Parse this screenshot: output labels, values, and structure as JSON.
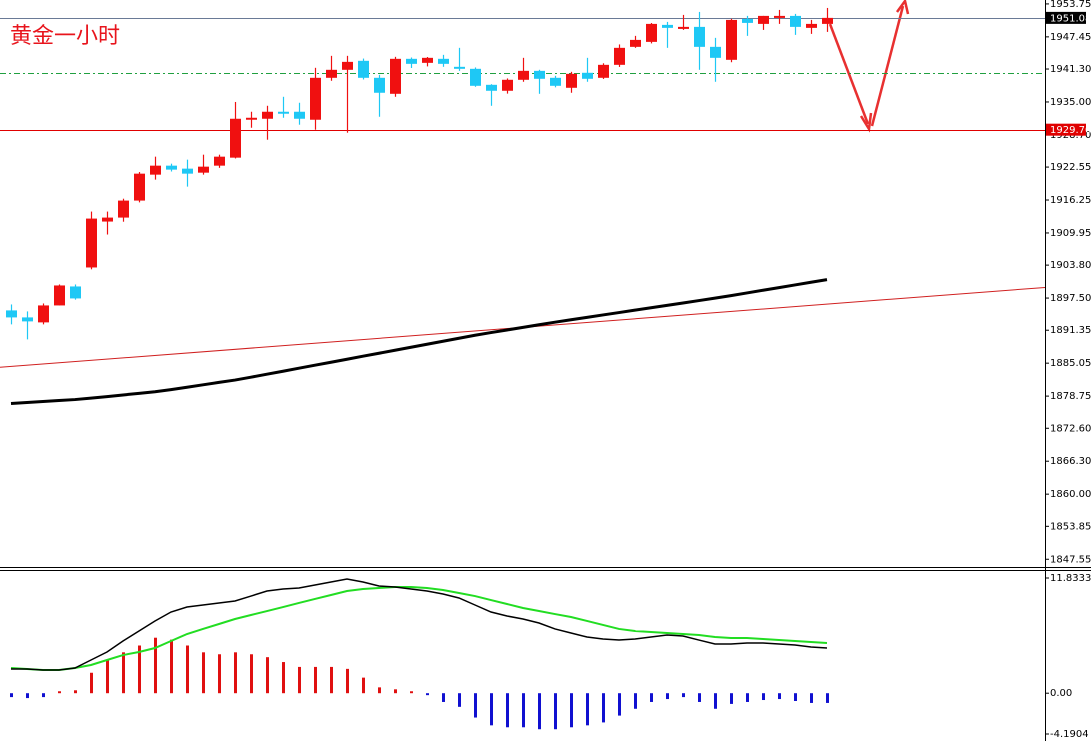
{
  "chart_data": [
    {
      "type": "candlestick",
      "title": "黄金一小时",
      "open": [
        1895.14,
        1893.8,
        1892.85,
        1896.09,
        1899.72,
        1903.35,
        1912.13,
        1912.89,
        1916.14,
        1921.1,
        1922.82,
        1922.25,
        1921.48,
        1922.82,
        1924.35,
        1931.6,
        1931.79,
        1933.13,
        1933.13,
        1931.6,
        1939.62,
        1941.15,
        1942.87,
        1939.62,
        1936.56,
        1943.25,
        1942.48,
        1943.25,
        1941.72,
        1941.34,
        1938.28,
        1937.14,
        1939.24,
        1940.95,
        1939.62,
        1937.71,
        1940.58,
        1939.62,
        1942.1,
        1945.54,
        1946.49,
        1949.74,
        1948.97,
        1949.36,
        1945.54,
        1943.06,
        1950.88,
        1949.93,
        1951.07,
        1951.46,
        1949.17,
        1949.93
      ],
      "high": [
        1896.28,
        1894.95,
        1896.47,
        1900.1,
        1900.1,
        1914.04,
        1914.04,
        1916.5,
        1921.6,
        1924.54,
        1923.2,
        1923.97,
        1924.92,
        1924.92,
        1935.0,
        1933.13,
        1934.27,
        1935.99,
        1934.85,
        1941.53,
        1943.82,
        1943.82,
        1943.3,
        1940.19,
        1943.63,
        1943.5,
        1943.6,
        1944.01,
        1945.35,
        1941.6,
        1938.4,
        1939.5,
        1943.44,
        1941.15,
        1940.0,
        1940.76,
        1943.44,
        1942.4,
        1946.0,
        1947.64,
        1950.1,
        1950.31,
        1951.65,
        1952.22,
        1947.26,
        1950.9,
        1951.46,
        1951.46,
        1952.6,
        1951.84,
        1950.69,
        1952.98
      ],
      "low": [
        1892.47,
        1889.6,
        1892.47,
        1896.09,
        1897.2,
        1903.0,
        1909.65,
        1912.1,
        1915.8,
        1920.15,
        1921.7,
        1918.81,
        1921.1,
        1922.4,
        1924.2,
        1930.07,
        1927.78,
        1931.98,
        1930.65,
        1929.69,
        1939.05,
        1929.12,
        1939.3,
        1932.17,
        1935.99,
        1941.5,
        1941.8,
        1941.72,
        1940.95,
        1937.9,
        1934.27,
        1936.6,
        1938.86,
        1936.56,
        1937.8,
        1936.76,
        1938.86,
        1939.4,
        1941.7,
        1945.35,
        1946.2,
        1945.35,
        1948.78,
        1941.15,
        1938.86,
        1942.6,
        1947.64,
        1948.78,
        1949.93,
        1947.83,
        1948.02,
        1948.4
      ],
      "close": [
        1893.8,
        1893.04,
        1896.09,
        1899.91,
        1897.43,
        1912.7,
        1912.89,
        1916.14,
        1921.29,
        1922.82,
        1922.06,
        1921.29,
        1922.63,
        1924.54,
        1931.79,
        1931.98,
        1933.13,
        1932.75,
        1931.79,
        1939.62,
        1941.15,
        1942.67,
        1939.62,
        1936.76,
        1943.25,
        1942.29,
        1943.44,
        1942.29,
        1941.34,
        1938.09,
        1937.14,
        1939.24,
        1940.95,
        1939.43,
        1938.09,
        1940.38,
        1939.43,
        1942.1,
        1945.35,
        1946.87,
        1949.93,
        1949.17,
        1949.36,
        1945.54,
        1943.44,
        1950.69,
        1950.12,
        1951.46,
        1951.46,
        1949.36,
        1949.93,
        1951.08
      ],
      "up_color": "#f01010",
      "down_color": "#1ec8f5",
      "moving_average": {
        "color": "#000000",
        "values": [
          1877.33,
          1877.52,
          1877.71,
          1877.9,
          1878.09,
          1878.36,
          1878.66,
          1878.97,
          1879.28,
          1879.58,
          1879.99,
          1880.45,
          1880.91,
          1881.37,
          1881.82,
          1882.37,
          1882.94,
          1883.51,
          1884.09,
          1884.66,
          1885.23,
          1885.8,
          1886.38,
          1886.95,
          1887.52,
          1888.1,
          1888.67,
          1889.24,
          1889.81,
          1890.39,
          1890.9,
          1891.4,
          1891.89,
          1892.39,
          1892.89,
          1893.36,
          1893.81,
          1894.27,
          1894.73,
          1895.19,
          1895.65,
          1896.11,
          1896.56,
          1897.02,
          1897.48,
          1897.97,
          1898.48,
          1899.0,
          1899.49,
          1900.01,
          1900.52,
          1901.02
        ]
      },
      "trendline": {
        "color": "#d02020",
        "values": [
          1884.26,
          1899.53
        ]
      },
      "hlines": [
        {
          "value": 1951.08,
          "color": "#6a7a96",
          "style": "solid",
          "tag_color": "#000000"
        },
        {
          "value": 1929.7,
          "label": "1929.70",
          "color": "#e00000",
          "style": "solid",
          "tag_color": "#e00000"
        },
        {
          "value": 1940.57,
          "color": "#20a040",
          "style": "dash-dot"
        }
      ],
      "ylim": [
        1846.07,
        1954.5
      ],
      "yticks": [
        1953.75,
        1947.45,
        {
          "value": 1941.3,
          "label": "1941.30"
        },
        {
          "value": 1935,
          "label": "1935.00"
        },
        {
          "value": 1928.7,
          "label": "1928.70"
        },
        1922.55,
        1916.25,
        1909.95,
        {
          "value": 1903.8,
          "label": "1903.80"
        },
        {
          "value": 1897.5,
          "label": "1897.50"
        },
        1891.35,
        1885.05,
        1878.75,
        {
          "value": 1872.6,
          "label": "1872.60"
        },
        {
          "value": 1866.3,
          "label": "1866.30"
        },
        {
          "value": 1860,
          "label": "1860.00"
        },
        1853.85,
        1847.55
      ]
    },
    {
      "type": "macd",
      "histogram": [
        -0.4,
        -0.5,
        -0.4,
        0.2,
        0.3,
        2.1,
        3.4,
        4.2,
        4.9,
        5.7,
        5.5,
        4.9,
        4.2,
        4.0,
        4.2,
        4.0,
        3.7,
        3.2,
        2.7,
        2.7,
        2.7,
        2.5,
        1.6,
        0.6,
        0.4,
        0.2,
        -0.2,
        -0.9,
        -1.4,
        -2.5,
        -3.3,
        -3.5,
        -3.5,
        -3.7,
        -3.7,
        -3.5,
        -3.3,
        -3.0,
        -2.3,
        -1.6,
        -0.9,
        -0.6,
        -0.4,
        -0.9,
        -1.6,
        -1.1,
        -0.9,
        -0.7,
        -0.6,
        -0.8,
        -1.0,
        -1.0
      ],
      "up_color": "#e01010",
      "down_color": "#1010d0",
      "macd": {
        "color": "#000000",
        "values": [
          2.48,
          2.48,
          2.38,
          2.38,
          2.59,
          3.41,
          4.23,
          5.36,
          6.39,
          7.42,
          8.34,
          8.85,
          9.06,
          9.27,
          9.47,
          9.98,
          10.5,
          10.7,
          10.81,
          11.11,
          11.42,
          11.73,
          11.42,
          11.01,
          10.91,
          10.7,
          10.5,
          10.19,
          9.78,
          9.06,
          8.34,
          7.93,
          7.62,
          7.21,
          6.6,
          6.18,
          5.77,
          5.57,
          5.46,
          5.57,
          5.77,
          5.98,
          5.87,
          5.46,
          5.05,
          5.05,
          5.16,
          5.16,
          5.05,
          4.95,
          4.75,
          4.64
        ]
      },
      "signal": {
        "color": "#22dd22",
        "values": [
          2.59,
          2.48,
          2.38,
          2.38,
          2.59,
          2.9,
          3.41,
          3.92,
          4.23,
          4.64,
          5.36,
          6.08,
          6.6,
          7.11,
          7.62,
          8.03,
          8.44,
          8.85,
          9.27,
          9.68,
          10.09,
          10.5,
          10.7,
          10.81,
          10.91,
          10.91,
          10.81,
          10.6,
          10.29,
          9.98,
          9.57,
          9.16,
          8.75,
          8.44,
          8.13,
          7.83,
          7.42,
          7.01,
          6.6,
          6.39,
          6.29,
          6.18,
          6.08,
          5.98,
          5.77,
          5.67,
          5.67,
          5.57,
          5.46,
          5.36,
          5.26,
          5.16
        ]
      },
      "ylim": [
        -4.1904,
        11.8333
      ],
      "yticks": [
        11.8333,
        {
          "value": 0,
          "label": "0.00"
        },
        -4.1904
      ]
    }
  ]
}
